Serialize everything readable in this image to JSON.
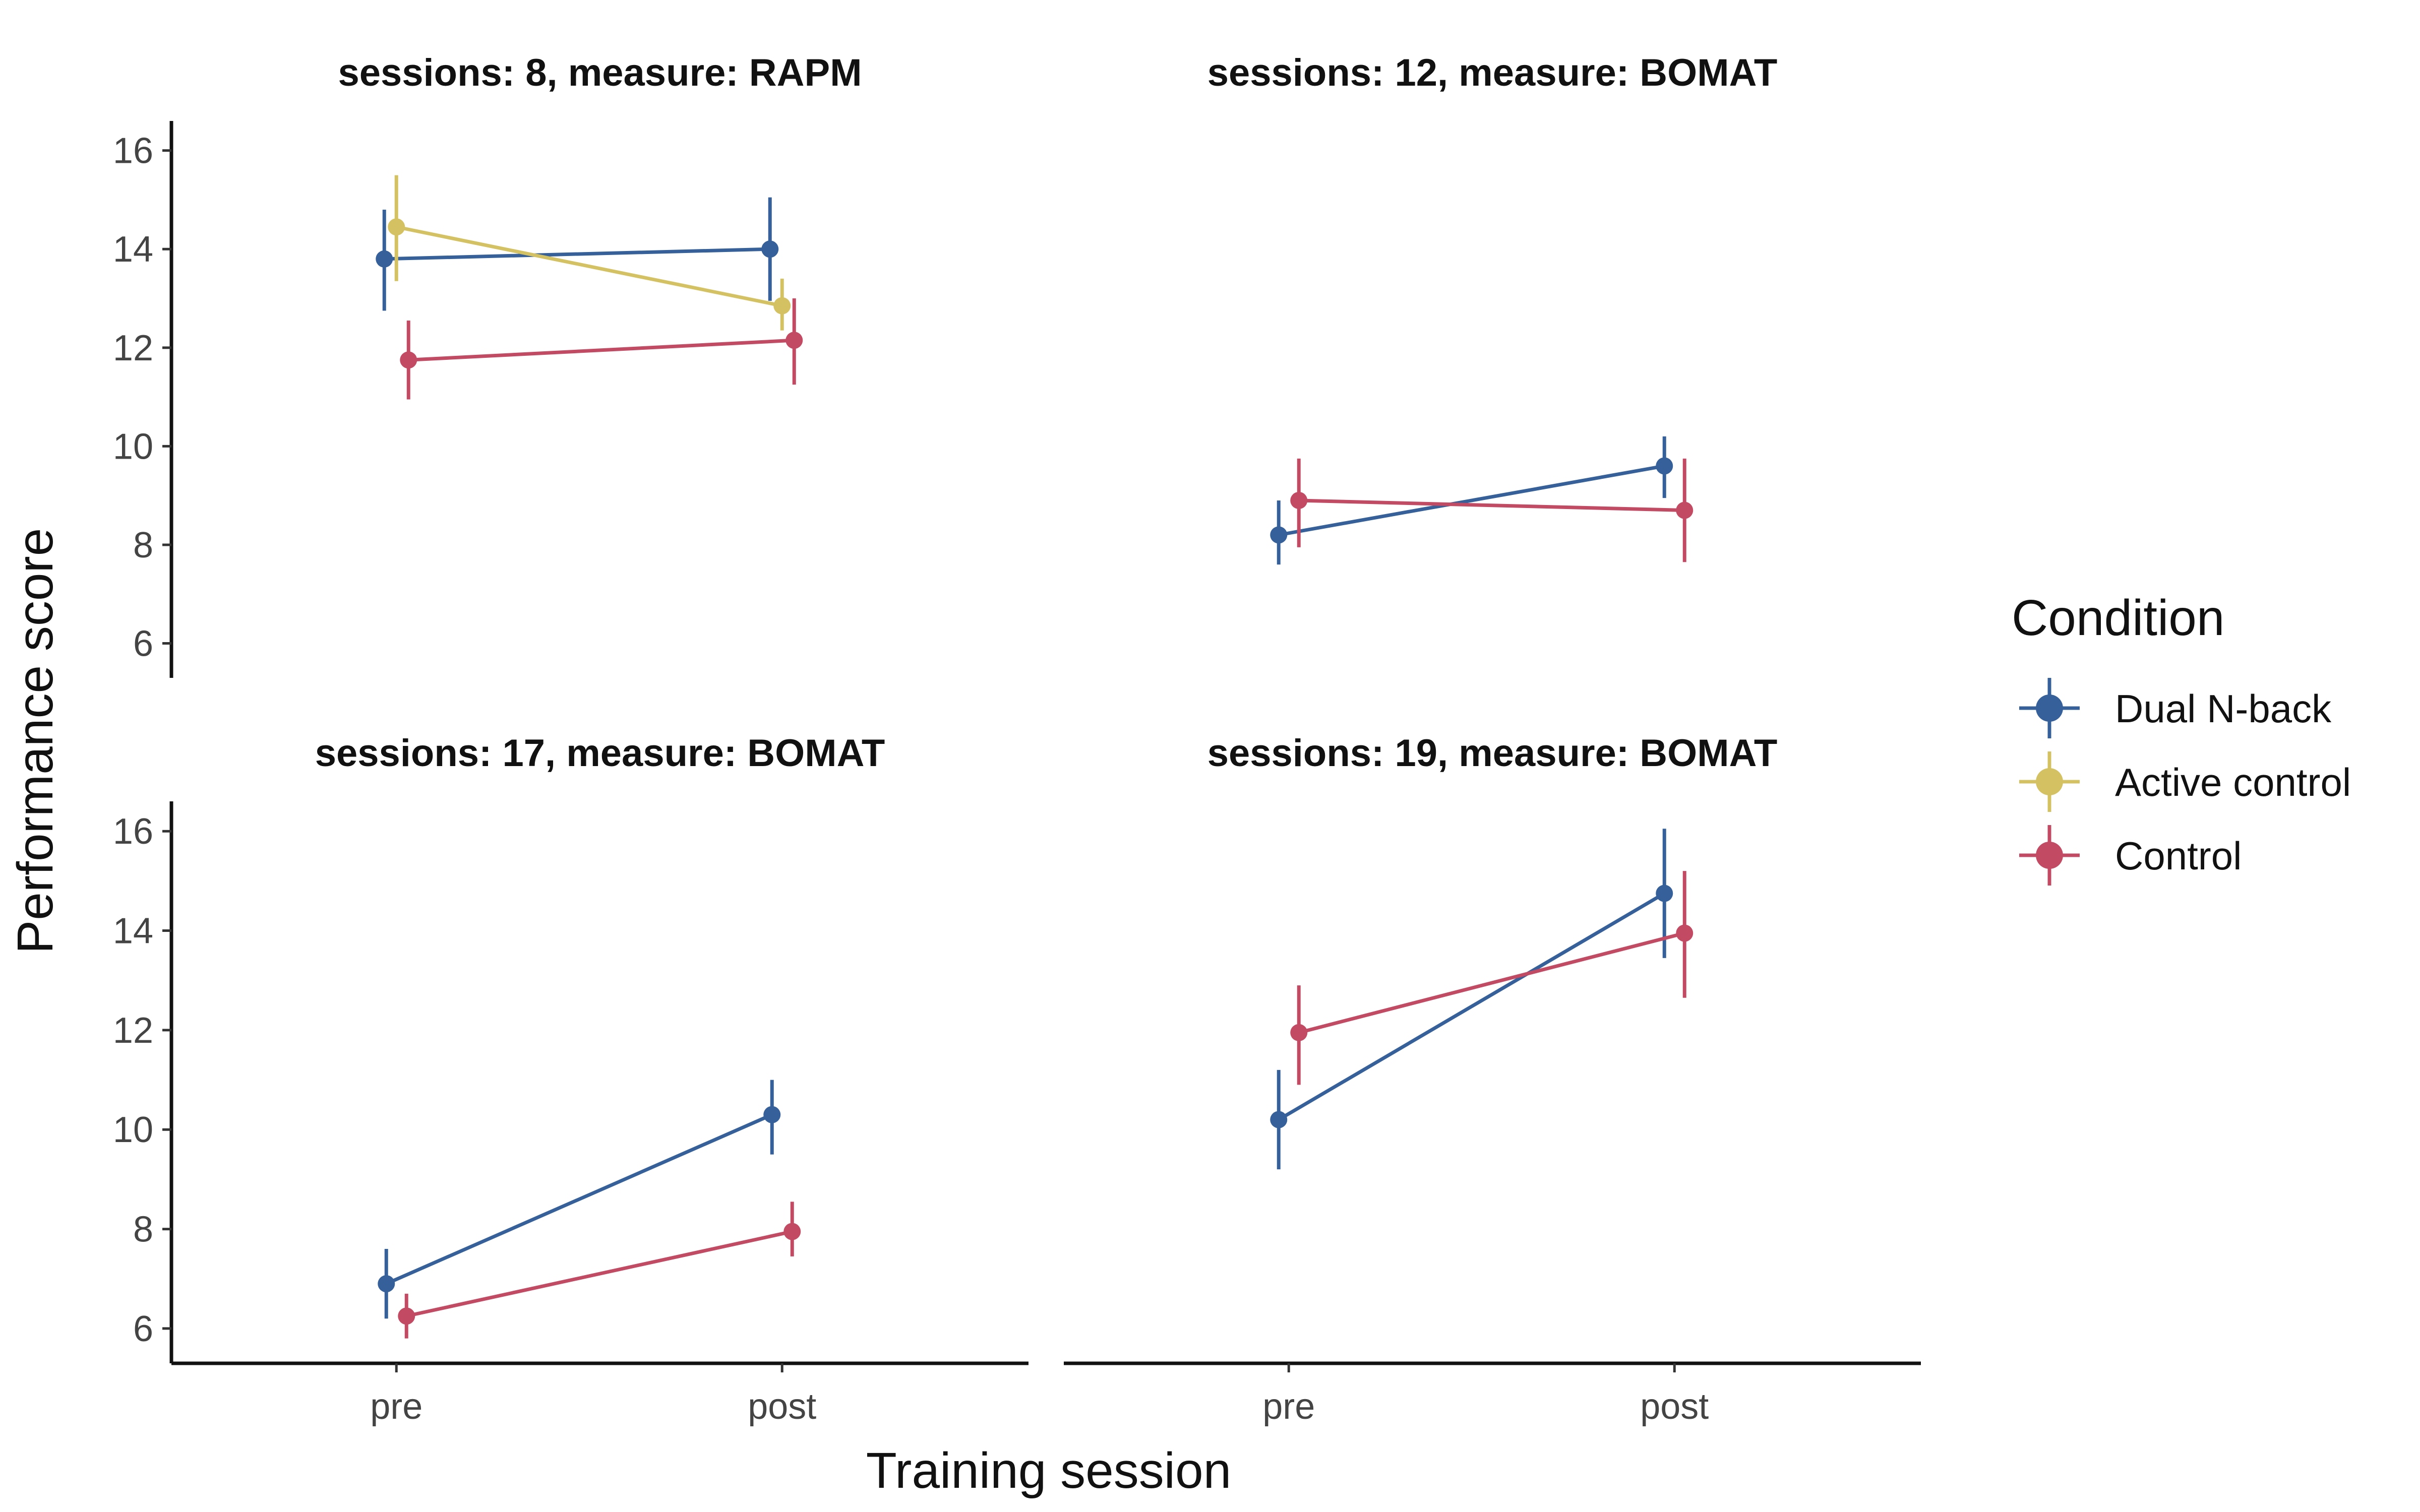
{
  "chart_data": {
    "type": "line",
    "xlabel": "Training session",
    "ylabel": "Performance score",
    "categories": [
      "pre",
      "post"
    ],
    "ylim": [
      5.3,
      16.6
    ],
    "yticks": [
      6,
      8,
      10,
      12,
      14,
      16
    ],
    "grid": false,
    "legend": {
      "title": "Condition",
      "placement": "right",
      "entries": [
        {
          "name": "Dual N-back",
          "color": "#36609A"
        },
        {
          "name": "Active control",
          "color": "#D4C262"
        },
        {
          "name": "Control",
          "color": "#C34A63"
        }
      ]
    },
    "panels": [
      {
        "title": "sessions: 8, measure: RAPM",
        "series": [
          {
            "name": "Dual N-back",
            "values": [
              13.8,
              14.0
            ],
            "lower": [
              12.75,
              12.95
            ],
            "upper": [
              14.8,
              15.05
            ]
          },
          {
            "name": "Active control",
            "values": [
              14.45,
              12.85
            ],
            "lower": [
              13.35,
              12.35
            ],
            "upper": [
              15.5,
              13.4
            ]
          },
          {
            "name": "Control",
            "values": [
              11.75,
              12.15
            ],
            "lower": [
              10.95,
              11.25
            ],
            "upper": [
              12.55,
              13.0
            ]
          }
        ]
      },
      {
        "title": "sessions: 12, measure: BOMAT",
        "series": [
          {
            "name": "Dual N-back",
            "values": [
              8.2,
              9.6
            ],
            "lower": [
              7.6,
              8.95
            ],
            "upper": [
              8.9,
              10.2
            ]
          },
          {
            "name": "Control",
            "values": [
              8.9,
              8.7
            ],
            "lower": [
              7.95,
              7.65
            ],
            "upper": [
              9.75,
              9.75
            ]
          }
        ]
      },
      {
        "title": "sessions: 17, measure: BOMAT",
        "series": [
          {
            "name": "Dual N-back",
            "values": [
              6.9,
              10.3
            ],
            "lower": [
              6.2,
              9.5
            ],
            "upper": [
              7.6,
              11.0
            ]
          },
          {
            "name": "Control",
            "values": [
              6.25,
              7.95
            ],
            "lower": [
              5.8,
              7.45
            ],
            "upper": [
              6.7,
              8.55
            ]
          }
        ]
      },
      {
        "title": "sessions: 19, measure: BOMAT",
        "series": [
          {
            "name": "Dual N-back",
            "values": [
              10.2,
              14.75
            ],
            "lower": [
              9.2,
              13.45
            ],
            "upper": [
              11.2,
              16.05
            ]
          },
          {
            "name": "Control",
            "values": [
              11.95,
              13.95
            ],
            "lower": [
              10.9,
              12.65
            ],
            "upper": [
              12.9,
              15.2
            ]
          }
        ]
      }
    ]
  }
}
